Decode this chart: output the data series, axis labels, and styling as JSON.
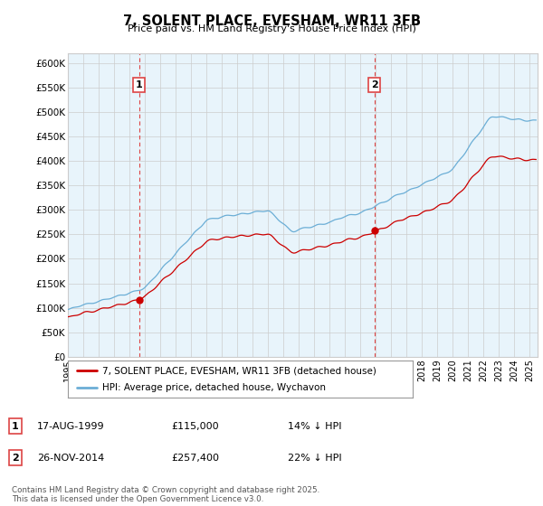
{
  "title": "7, SOLENT PLACE, EVESHAM, WR11 3FB",
  "subtitle": "Price paid vs. HM Land Registry's House Price Index (HPI)",
  "ylim": [
    0,
    620000
  ],
  "xlim_start": 1995.0,
  "xlim_end": 2025.5,
  "sale1_date": 1999.63,
  "sale1_price": 115000,
  "sale1_label": "1",
  "sale2_date": 2014.91,
  "sale2_price": 257400,
  "sale2_label": "2",
  "legend_line1": "7, SOLENT PLACE, EVESHAM, WR11 3FB (detached house)",
  "legend_line2": "HPI: Average price, detached house, Wychavon",
  "table_row1": [
    "1",
    "17-AUG-1999",
    "£115,000",
    "14% ↓ HPI"
  ],
  "table_row2": [
    "2",
    "26-NOV-2014",
    "£257,400",
    "22% ↓ HPI"
  ],
  "footnote": "Contains HM Land Registry data © Crown copyright and database right 2025.\nThis data is licensed under the Open Government Licence v3.0.",
  "hpi_color": "#6baed6",
  "price_color": "#cc0000",
  "vline_color": "#dd4444",
  "chart_bg": "#e8f4fb",
  "background_color": "#ffffff",
  "grid_color": "#cccccc"
}
